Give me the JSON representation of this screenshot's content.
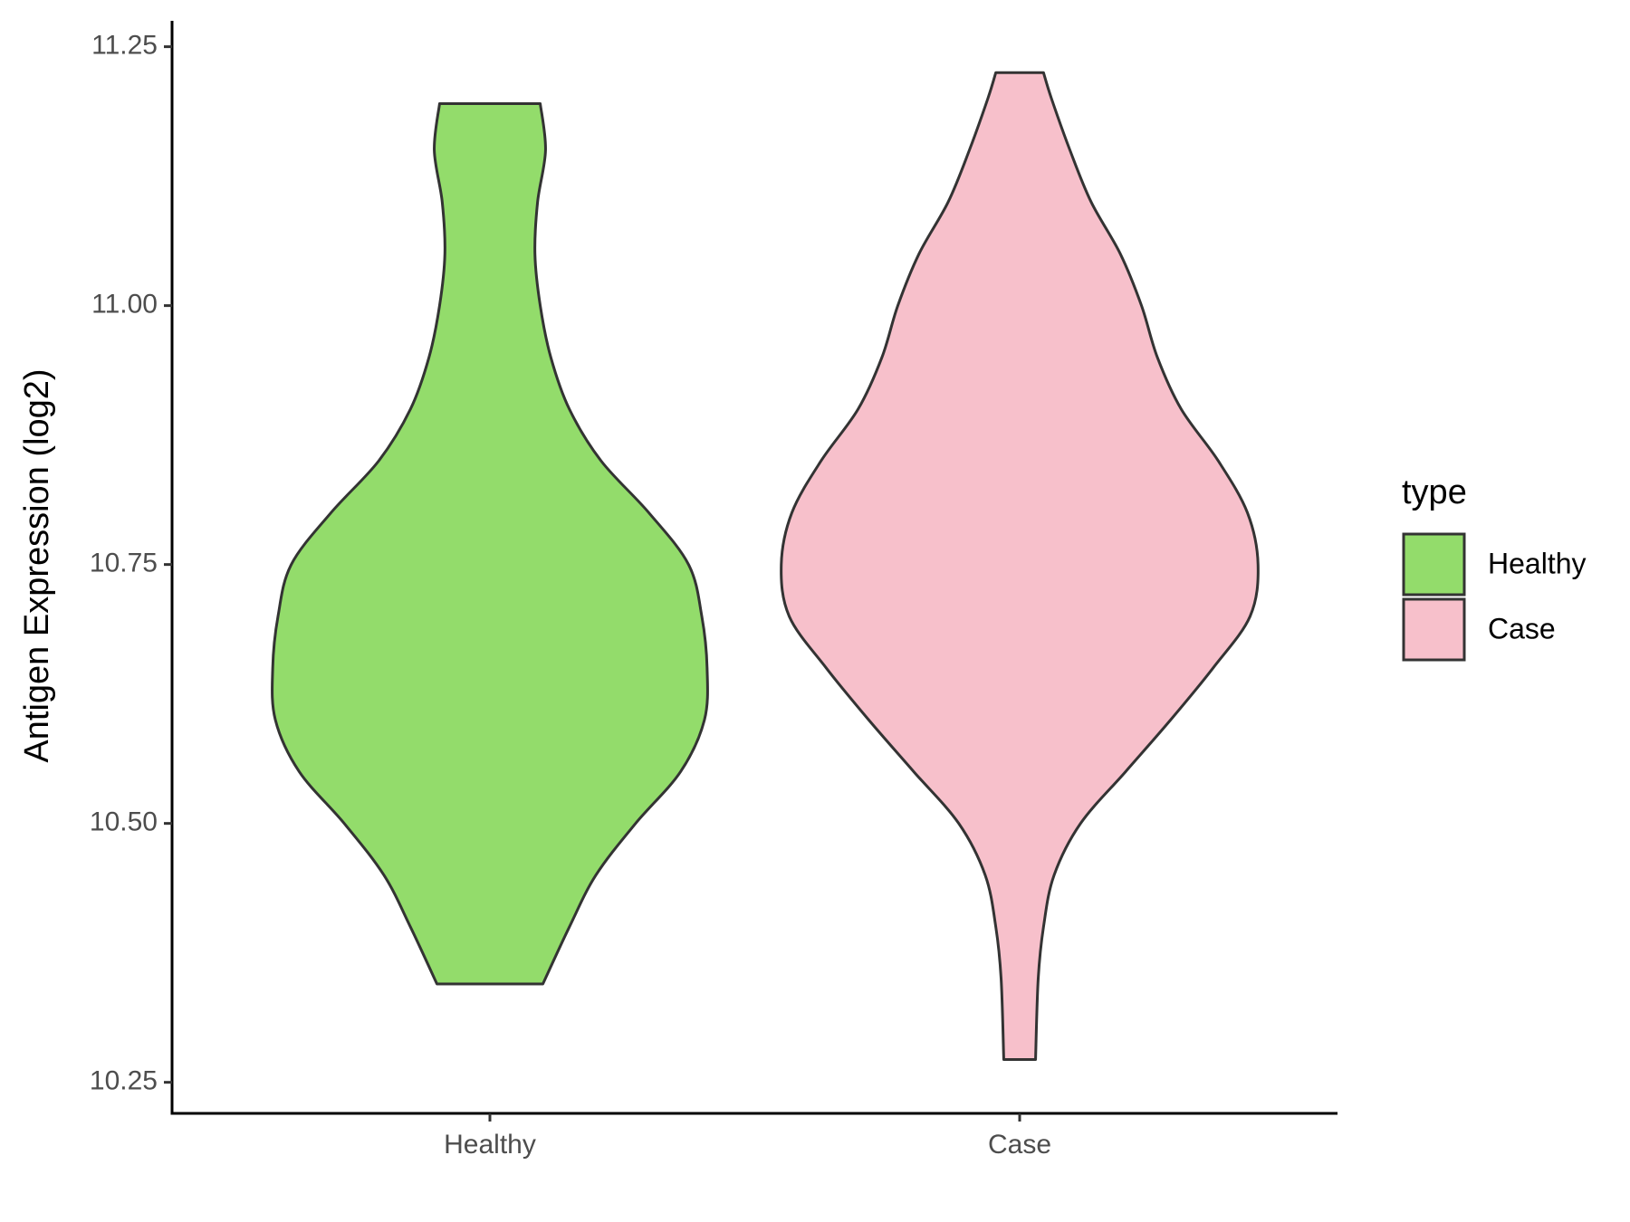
{
  "chart_data": {
    "type": "violin",
    "y_label": "Antigen Expression (log2)",
    "categories": [
      "Healthy",
      "Case"
    ],
    "ylim": [
      10.22,
      11.275
    ],
    "yticks": [
      {
        "value": 10.25,
        "label": "10.25"
      },
      {
        "value": 10.5,
        "label": "10.50"
      },
      {
        "value": 10.75,
        "label": "10.75"
      },
      {
        "value": 11.0,
        "label": "11.00"
      },
      {
        "value": 11.25,
        "label": "11.25"
      }
    ],
    "legend_title": "type",
    "legend_position": "right",
    "series": [
      {
        "name": "Healthy",
        "color": "#93dc6b",
        "y": [
          11.195,
          11.15,
          11.1,
          11.05,
          11.0,
          10.95,
          10.9,
          10.85,
          10.8,
          10.75,
          10.7,
          10.65,
          10.6,
          10.55,
          10.5,
          10.45,
          10.4,
          10.345
        ],
        "widths": [
          0.19,
          0.21,
          0.18,
          0.17,
          0.19,
          0.23,
          0.3,
          0.42,
          0.6,
          0.75,
          0.8,
          0.82,
          0.81,
          0.72,
          0.55,
          0.4,
          0.3,
          0.2
        ]
      },
      {
        "name": "Case",
        "color": "#f7c0cb",
        "y": [
          11.225,
          11.2,
          11.15,
          11.1,
          11.05,
          11.0,
          10.95,
          10.9,
          10.85,
          10.8,
          10.75,
          10.7,
          10.65,
          10.6,
          10.55,
          10.5,
          10.45,
          10.4,
          10.35,
          10.272
        ],
        "widths": [
          0.09,
          0.12,
          0.19,
          0.27,
          0.38,
          0.46,
          0.52,
          0.61,
          0.75,
          0.86,
          0.9,
          0.87,
          0.73,
          0.57,
          0.4,
          0.23,
          0.13,
          0.09,
          0.07,
          0.06
        ]
      }
    ]
  }
}
